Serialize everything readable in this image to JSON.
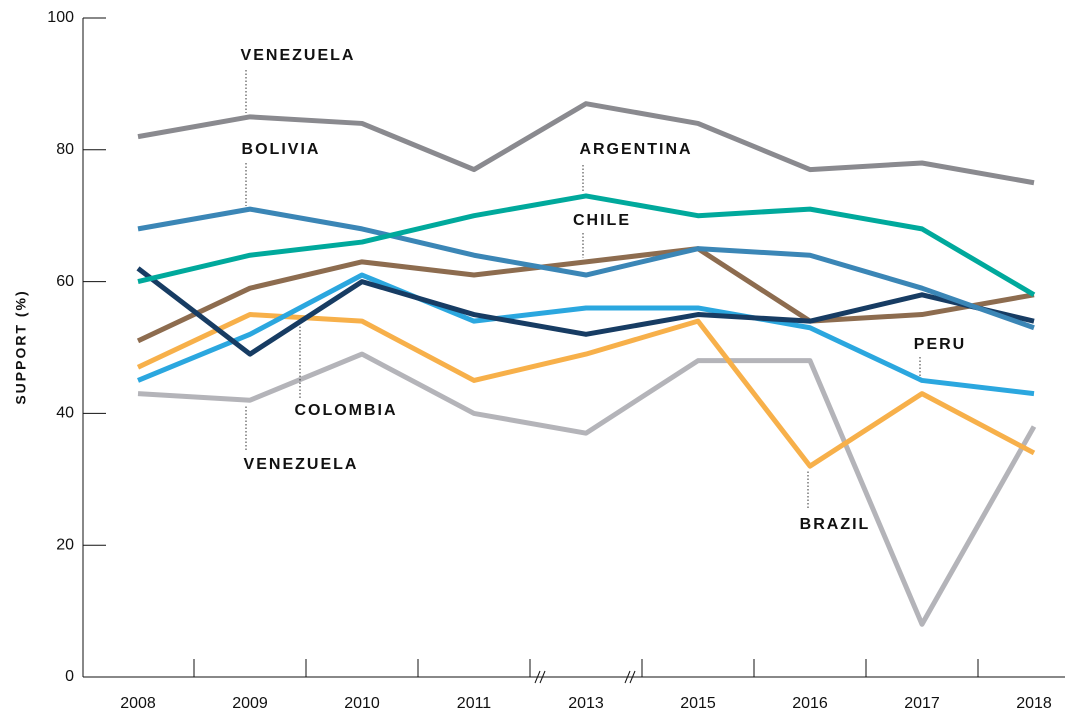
{
  "chart_data": {
    "type": "line",
    "y_label": "SUPPORT (%)",
    "categories": [
      "2008",
      "2009",
      "2010",
      "2011",
      "2013",
      "2015",
      "2016",
      "2017",
      "2018"
    ],
    "ylim": [
      0,
      100
    ],
    "yticks": [
      0,
      20,
      40,
      60,
      80,
      100
    ],
    "series": [
      {
        "name": "VENEZUELA",
        "color": "#8a8a8f",
        "values": [
          82,
          85,
          84,
          77,
          87,
          84,
          77,
          78,
          75
        ]
      },
      {
        "name": "VENEZUELA",
        "color": "#b4b4b9",
        "values": [
          43,
          42,
          49,
          40,
          37,
          48,
          48,
          8,
          38
        ]
      },
      {
        "name": "BRAZIL",
        "color": "#f7b04a",
        "values": [
          47,
          55,
          54,
          45,
          49,
          54,
          32,
          43,
          34
        ]
      },
      {
        "name": "PERU",
        "color": "#2ba7df",
        "values": [
          45,
          52,
          61,
          54,
          56,
          56,
          53,
          45,
          43
        ]
      },
      {
        "name": "CHILE",
        "color": "#8d6c4f",
        "values": [
          51,
          59,
          63,
          61,
          63,
          65,
          54,
          55,
          58
        ]
      },
      {
        "name": "COLOMBIA",
        "color": "#173c63",
        "values": [
          62,
          49,
          60,
          55,
          52,
          55,
          54,
          58,
          54
        ]
      },
      {
        "name": "BOLIVIA",
        "color": "#3b86b6",
        "values": [
          68,
          71,
          68,
          64,
          61,
          65,
          64,
          59,
          53
        ]
      },
      {
        "name": "ARGENTINA",
        "color": "#00a99c",
        "values": [
          60,
          64,
          66,
          70,
          73,
          70,
          71,
          68,
          58
        ]
      }
    ]
  }
}
